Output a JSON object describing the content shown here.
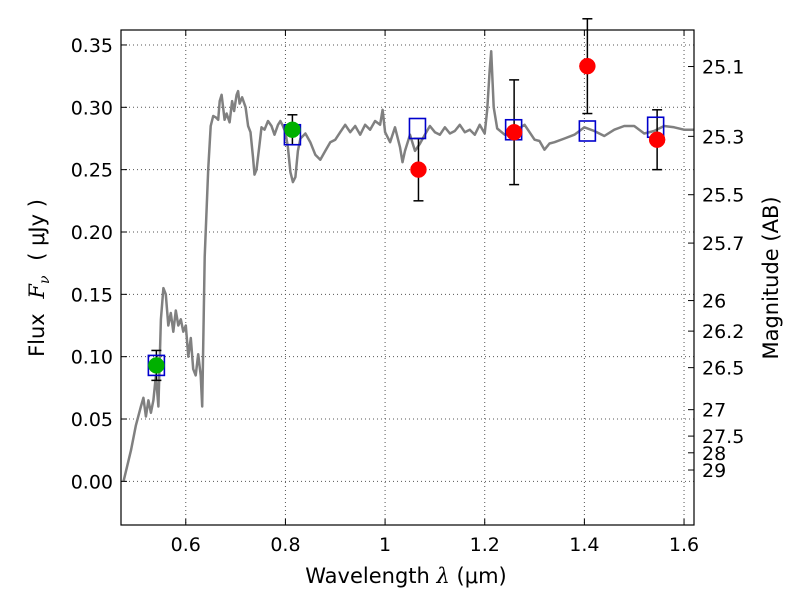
{
  "chart_data": {
    "type": "scatter",
    "xlabel_prefix": "Wavelength",
    "xlabel_symbol": "λ",
    "xlabel_unit": "(μm)",
    "ylabel_prefix": "Flux",
    "ylabel_symbol": "F",
    "ylabel_sub": "ν",
    "ylabel_unit": "( μJy )",
    "y2label": "Magnitude (AB)",
    "xlim": [
      0.47,
      1.62
    ],
    "ylim": [
      -0.035,
      0.362
    ],
    "x_ticks": [
      0.6,
      0.8,
      1.0,
      1.2,
      1.4,
      1.6
    ],
    "x_tick_labels": [
      "0.6",
      "0.8",
      "1",
      "1.2",
      "1.4",
      "1.6"
    ],
    "y_ticks": [
      0.0,
      0.05,
      0.1,
      0.15,
      0.2,
      0.25,
      0.3,
      0.35
    ],
    "y_tick_labels": [
      "0.00",
      "0.05",
      "0.10",
      "0.15",
      "0.20",
      "0.25",
      "0.30",
      "0.35"
    ],
    "mag_ticks": [
      {
        "flux": 0.3327,
        "label": "25.1"
      },
      {
        "flux": 0.2767,
        "label": "25.3"
      },
      {
        "flux": 0.2299,
        "label": "25.5"
      },
      {
        "flux": 0.1911,
        "label": "25.7"
      },
      {
        "flux": 0.145,
        "label": "26"
      },
      {
        "flux": 0.1205,
        "label": "26.2"
      },
      {
        "flux": 0.0912,
        "label": "26.5"
      },
      {
        "flux": 0.0575,
        "label": "27"
      },
      {
        "flux": 0.0363,
        "label": "27.5"
      },
      {
        "flux": 0.0229,
        "label": "28"
      },
      {
        "flux": 0.0091,
        "label": "29"
      }
    ],
    "colors": {
      "template": "#808080",
      "model": "#0000cc",
      "green": "#00b000",
      "red": "#ff0000",
      "errorbar": "#000000",
      "grid": "#555555"
    },
    "series": [
      {
        "name": "template spectrum",
        "kind": "line",
        "points": [
          [
            0.475,
            0.0
          ],
          [
            0.49,
            0.025
          ],
          [
            0.5,
            0.045
          ],
          [
            0.51,
            0.06
          ],
          [
            0.515,
            0.067
          ],
          [
            0.52,
            0.052
          ],
          [
            0.525,
            0.065
          ],
          [
            0.53,
            0.055
          ],
          [
            0.535,
            0.065
          ],
          [
            0.54,
            0.085
          ],
          [
            0.545,
            0.06
          ],
          [
            0.55,
            0.13
          ],
          [
            0.555,
            0.155
          ],
          [
            0.56,
            0.15
          ],
          [
            0.565,
            0.125
          ],
          [
            0.57,
            0.135
          ],
          [
            0.575,
            0.12
          ],
          [
            0.58,
            0.137
          ],
          [
            0.585,
            0.125
          ],
          [
            0.59,
            0.13
          ],
          [
            0.595,
            0.12
          ],
          [
            0.6,
            0.125
          ],
          [
            0.605,
            0.1
          ],
          [
            0.61,
            0.115
          ],
          [
            0.615,
            0.09
          ],
          [
            0.62,
            0.085
          ],
          [
            0.625,
            0.102
          ],
          [
            0.63,
            0.085
          ],
          [
            0.633,
            0.06
          ],
          [
            0.638,
            0.18
          ],
          [
            0.645,
            0.25
          ],
          [
            0.65,
            0.285
          ],
          [
            0.655,
            0.293
          ],
          [
            0.66,
            0.292
          ],
          [
            0.665,
            0.29
          ],
          [
            0.668,
            0.305
          ],
          [
            0.672,
            0.31
          ],
          [
            0.678,
            0.29
          ],
          [
            0.682,
            0.295
          ],
          [
            0.688,
            0.288
          ],
          [
            0.693,
            0.305
          ],
          [
            0.697,
            0.297
          ],
          [
            0.702,
            0.31
          ],
          [
            0.705,
            0.313
          ],
          [
            0.708,
            0.303
          ],
          [
            0.713,
            0.308
          ],
          [
            0.72,
            0.3
          ],
          [
            0.725,
            0.285
          ],
          [
            0.73,
            0.28
          ],
          [
            0.735,
            0.26
          ],
          [
            0.738,
            0.246
          ],
          [
            0.742,
            0.25
          ],
          [
            0.748,
            0.27
          ],
          [
            0.752,
            0.284
          ],
          [
            0.758,
            0.282
          ],
          [
            0.765,
            0.289
          ],
          [
            0.772,
            0.285
          ],
          [
            0.778,
            0.278
          ],
          [
            0.785,
            0.286
          ],
          [
            0.79,
            0.289
          ],
          [
            0.795,
            0.285
          ],
          [
            0.8,
            0.28
          ],
          [
            0.805,
            0.268
          ],
          [
            0.81,
            0.248
          ],
          [
            0.815,
            0.24
          ],
          [
            0.82,
            0.244
          ],
          [
            0.825,
            0.265
          ],
          [
            0.83,
            0.275
          ],
          [
            0.84,
            0.279
          ],
          [
            0.85,
            0.272
          ],
          [
            0.86,
            0.262
          ],
          [
            0.87,
            0.258
          ],
          [
            0.88,
            0.265
          ],
          [
            0.89,
            0.272
          ],
          [
            0.9,
            0.274
          ],
          [
            0.91,
            0.28
          ],
          [
            0.92,
            0.286
          ],
          [
            0.93,
            0.28
          ],
          [
            0.94,
            0.285
          ],
          [
            0.95,
            0.278
          ],
          [
            0.96,
            0.286
          ],
          [
            0.97,
            0.282
          ],
          [
            0.98,
            0.289
          ],
          [
            0.99,
            0.286
          ],
          [
            0.995,
            0.298
          ],
          [
            1.0,
            0.28
          ],
          [
            1.01,
            0.272
          ],
          [
            1.02,
            0.284
          ],
          [
            1.03,
            0.268
          ],
          [
            1.035,
            0.256
          ],
          [
            1.04,
            0.265
          ],
          [
            1.05,
            0.278
          ],
          [
            1.06,
            0.265
          ],
          [
            1.07,
            0.271
          ],
          [
            1.08,
            0.278
          ],
          [
            1.09,
            0.285
          ],
          [
            1.1,
            0.28
          ],
          [
            1.11,
            0.278
          ],
          [
            1.12,
            0.284
          ],
          [
            1.13,
            0.279
          ],
          [
            1.14,
            0.281
          ],
          [
            1.15,
            0.286
          ],
          [
            1.16,
            0.28
          ],
          [
            1.17,
            0.282
          ],
          [
            1.18,
            0.278
          ],
          [
            1.19,
            0.286
          ],
          [
            1.2,
            0.279
          ],
          [
            1.205,
            0.298
          ],
          [
            1.21,
            0.33
          ],
          [
            1.213,
            0.345
          ],
          [
            1.218,
            0.3
          ],
          [
            1.225,
            0.283
          ],
          [
            1.24,
            0.278
          ],
          [
            1.26,
            0.281
          ],
          [
            1.28,
            0.286
          ],
          [
            1.3,
            0.274
          ],
          [
            1.31,
            0.273
          ],
          [
            1.32,
            0.266
          ],
          [
            1.33,
            0.271
          ],
          [
            1.34,
            0.272
          ],
          [
            1.36,
            0.275
          ],
          [
            1.38,
            0.278
          ],
          [
            1.4,
            0.284
          ],
          [
            1.42,
            0.281
          ],
          [
            1.44,
            0.277
          ],
          [
            1.46,
            0.282
          ],
          [
            1.48,
            0.285
          ],
          [
            1.5,
            0.285
          ],
          [
            1.52,
            0.279
          ],
          [
            1.54,
            0.281
          ],
          [
            1.56,
            0.285
          ],
          [
            1.58,
            0.284
          ],
          [
            1.6,
            0.282
          ],
          [
            1.62,
            0.282
          ]
        ]
      },
      {
        "name": "model photometry",
        "kind": "open-square",
        "points": [
          [
            0.541,
            0.093
          ],
          [
            0.814,
            0.278
          ],
          [
            1.065,
            0.283
          ],
          [
            1.258,
            0.282
          ],
          [
            1.406,
            0.281
          ],
          [
            1.543,
            0.284
          ]
        ]
      },
      {
        "name": "green observations",
        "kind": "circle",
        "points": [
          {
            "x": 0.541,
            "y": 0.093,
            "err": 0.012
          },
          {
            "x": 0.814,
            "y": 0.282,
            "err": 0.012
          }
        ]
      },
      {
        "name": "red observations",
        "kind": "circle",
        "points": [
          {
            "x": 1.067,
            "y": 0.25,
            "err": 0.025
          },
          {
            "x": 1.259,
            "y": 0.28,
            "err": 0.042
          },
          {
            "x": 1.406,
            "y": 0.333,
            "err": 0.038
          },
          {
            "x": 1.546,
            "y": 0.274,
            "err": 0.024
          }
        ]
      }
    ]
  }
}
